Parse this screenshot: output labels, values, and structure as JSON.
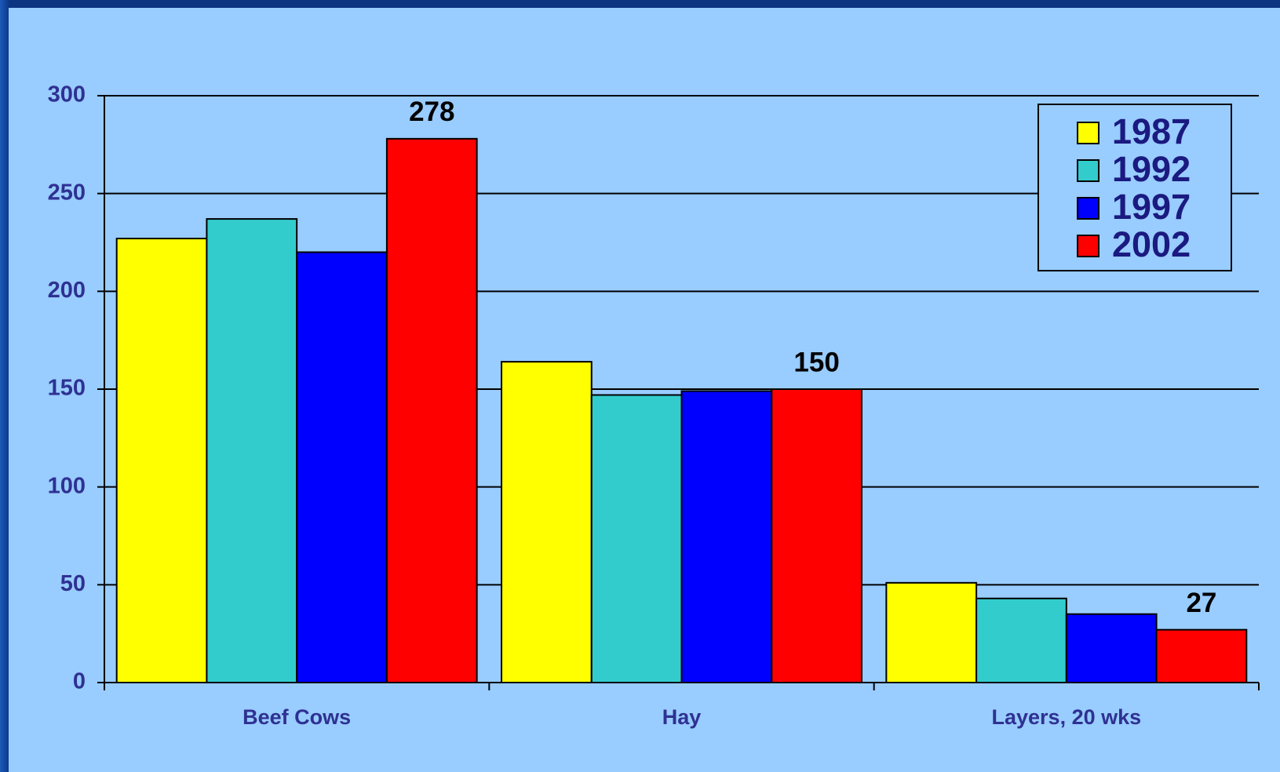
{
  "chart_data": {
    "type": "bar",
    "categories": [
      "Beef Cows",
      "Hay",
      "Layers, 20 wks"
    ],
    "series": [
      {
        "name": "1987",
        "color": "#ffff00",
        "values": [
          227,
          164,
          51
        ]
      },
      {
        "name": "1992",
        "color": "#33cccc",
        "values": [
          237,
          147,
          43
        ]
      },
      {
        "name": "1997",
        "color": "#0000ff",
        "values": [
          220,
          149,
          35
        ]
      },
      {
        "name": "2002",
        "color": "#ff0000",
        "values": [
          278,
          150,
          27
        ],
        "data_labels": true
      }
    ],
    "ylim": [
      0,
      300
    ],
    "yticks": [
      0,
      50,
      100,
      150,
      200,
      250,
      300
    ],
    "grid": true,
    "legend": "top-right"
  }
}
